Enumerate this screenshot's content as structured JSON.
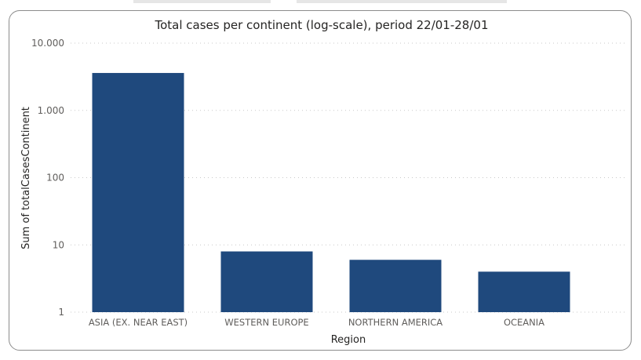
{
  "chart_data": {
    "type": "bar",
    "title": "Total cases per continent (log-scale), period 22/01-28/01",
    "xlabel": "Region",
    "ylabel": "Sum of totalCasesContinent",
    "y_scale": "log",
    "ylim": [
      1,
      10000
    ],
    "y_ticks": [
      {
        "value": 10000,
        "label": "10.000"
      },
      {
        "value": 1000,
        "label": "1.000"
      },
      {
        "value": 100,
        "label": "100"
      },
      {
        "value": 10,
        "label": "10"
      },
      {
        "value": 1,
        "label": "1"
      }
    ],
    "categories": [
      "ASIA (EX. NEAR EAST)",
      "WESTERN EUROPE",
      "NORTHERN AMERICA",
      "OCEANIA"
    ],
    "values": [
      3600,
      8,
      6,
      4
    ],
    "grid": true,
    "bar_color": "#1f497d"
  }
}
